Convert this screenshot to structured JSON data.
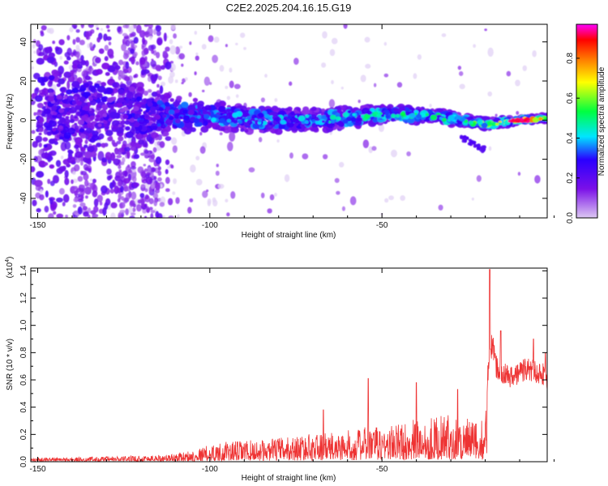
{
  "title": "C2E2.2025.204.16.15.G19",
  "colors": {
    "snr_line": "#ee3333",
    "background": "#ffffff",
    "colormap": [
      "#ffffff",
      "#dcc8f2",
      "#7b10e8",
      "#2a00ff",
      "#00e5ff",
      "#00ff40",
      "#ffff00",
      "#ff7a00",
      "#ff0000",
      "#ff00ff"
    ]
  },
  "chart_data": [
    {
      "type": "heatmap",
      "title": "",
      "xlabel": "Height of straight line (km)",
      "ylabel": "Frequency (Hz)",
      "xlim": [
        -152,
        -2
      ],
      "ylim": [
        -50,
        49
      ],
      "x_ticks": [
        -150,
        -100,
        -50
      ],
      "y_ticks": [
        -40,
        -20,
        0,
        20,
        40
      ],
      "colorbar": {
        "label": "Normalized spectral amplitude",
        "range": [
          0,
          0.97
        ],
        "ticks": [
          0.0,
          0.2,
          0.4,
          0.6,
          0.8
        ]
      },
      "grid": false,
      "ridge": {
        "description_points": [
          {
            "x": -150,
            "freq": 3,
            "spread": 40,
            "amp": 0.15
          },
          {
            "x": -140,
            "freq": 4,
            "spread": 30,
            "amp": 0.2
          },
          {
            "x": -125,
            "freq": 4,
            "spread": 25,
            "amp": 0.2
          },
          {
            "x": -115,
            "freq": 3,
            "spread": 12,
            "amp": 0.3
          },
          {
            "x": -100,
            "freq": 2,
            "spread": 8,
            "amp": 0.4
          },
          {
            "x": -80,
            "freq": 0,
            "spread": 7,
            "amp": 0.4
          },
          {
            "x": -60,
            "freq": 1,
            "spread": 6,
            "amp": 0.45
          },
          {
            "x": -50,
            "freq": 3,
            "spread": 5,
            "amp": 0.5
          },
          {
            "x": -35,
            "freq": 2,
            "spread": 4,
            "amp": 0.5
          },
          {
            "x": -20,
            "freq": -2,
            "spread": 3,
            "amp": 0.6
          },
          {
            "x": -10,
            "freq": 0,
            "spread": 2,
            "amp": 0.9
          },
          {
            "x": -3,
            "freq": 1,
            "spread": 2,
            "amp": 0.7
          }
        ]
      }
    },
    {
      "type": "line",
      "title": "",
      "xlabel": "Height of straight line (km)",
      "ylabel": "SNR (10 * v/v)",
      "y_multiplier": "(x10^4)",
      "xlim": [
        -152,
        -2
      ],
      "ylim": [
        0,
        1.42
      ],
      "x_ticks": [
        -150,
        -100,
        -50
      ],
      "y_ticks": [
        0.0,
        0.2,
        0.4,
        0.6,
        0.8,
        1.0,
        1.2,
        1.4
      ],
      "grid": false,
      "series": [
        {
          "x": [
            -152,
            -140,
            -125,
            -112,
            -105,
            -100,
            -95,
            -90,
            -85,
            -80,
            -75,
            -70,
            -65,
            -60,
            -55,
            -50,
            -45,
            -40,
            -35,
            -30,
            -25,
            -22,
            -20,
            -19,
            -18,
            -17,
            -15,
            -12,
            -10,
            -8,
            -5,
            -3,
            -2
          ],
          "values": [
            0.03,
            0.03,
            0.04,
            0.05,
            0.08,
            0.12,
            0.14,
            0.15,
            0.15,
            0.17,
            0.18,
            0.2,
            0.2,
            0.22,
            0.24,
            0.25,
            0.27,
            0.3,
            0.32,
            0.33,
            0.3,
            0.28,
            0.3,
            0.8,
            0.95,
            0.75,
            0.7,
            0.65,
            0.7,
            0.72,
            0.7,
            0.68,
            0.62
          ],
          "peaks": [
            {
              "x": -67,
              "value": 0.38
            },
            {
              "x": -54,
              "value": 0.61
            },
            {
              "x": -40,
              "value": 0.58
            },
            {
              "x": -28,
              "value": 0.53
            },
            {
              "x": -18.7,
              "value": 1.41
            },
            {
              "x": -15.5,
              "value": 0.96
            },
            {
              "x": -6,
              "value": 0.9
            },
            {
              "x": -2.5,
              "value": 0.8
            }
          ]
        }
      ]
    }
  ]
}
